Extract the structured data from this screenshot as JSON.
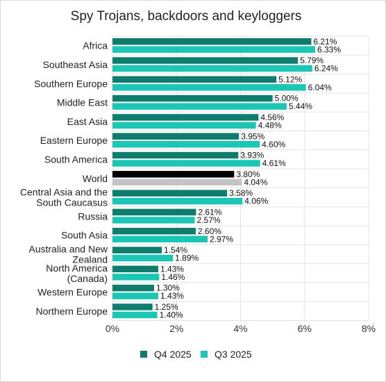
{
  "chart_data": {
    "type": "bar",
    "orientation": "horizontal",
    "title": "Spy Trojans, backdoors and keyloggers",
    "categories": [
      "Africa",
      "Southeast Asia",
      "Southern Europe",
      "Middle East",
      "East Asia",
      "Eastern Europe",
      "South America",
      "World",
      "Central Asia and the South Caucasus",
      "Russia",
      "South Asia",
      "Australia and New Zealand",
      "North America (Canada)",
      "Western Europe",
      "Northern Europe"
    ],
    "series": [
      {
        "name": "Q4 2025",
        "color": "#0e7d6e",
        "values": [
          6.21,
          5.79,
          5.12,
          5.0,
          4.56,
          3.95,
          3.93,
          3.8,
          3.58,
          2.61,
          2.6,
          1.54,
          1.43,
          1.3,
          1.25
        ],
        "labels": [
          "6.21%",
          "5.79%",
          "5.12%",
          "5.00%",
          "4.56%",
          "3.95%",
          "3.93%",
          "3.80%",
          "3.58%",
          "2.61%",
          "2.60%",
          "1.54%",
          "1.43%",
          "1.30%",
          "1.25%"
        ]
      },
      {
        "name": "Q3 2025",
        "color": "#1cc6b4",
        "values": [
          6.33,
          6.24,
          6.04,
          5.44,
          4.48,
          4.6,
          4.61,
          4.04,
          4.06,
          2.57,
          2.97,
          1.89,
          1.46,
          1.43,
          1.4
        ],
        "labels": [
          "6.33%",
          "6.24%",
          "6.04%",
          "5.44%",
          "4.48%",
          "4.60%",
          "4.61%",
          "4.04%",
          "4.06%",
          "2.57%",
          "2.97%",
          "1.89%",
          "1.46%",
          "1.43%",
          "1.40%"
        ]
      }
    ],
    "highlight": {
      "category": "World",
      "q4_color": "#000000",
      "q3_color": "#c4c4c4"
    },
    "xlim": [
      0,
      8
    ],
    "x_ticks": [
      "0%",
      "2%",
      "4%",
      "6%",
      "8%"
    ],
    "grid": true,
    "legend_position": "bottom"
  }
}
